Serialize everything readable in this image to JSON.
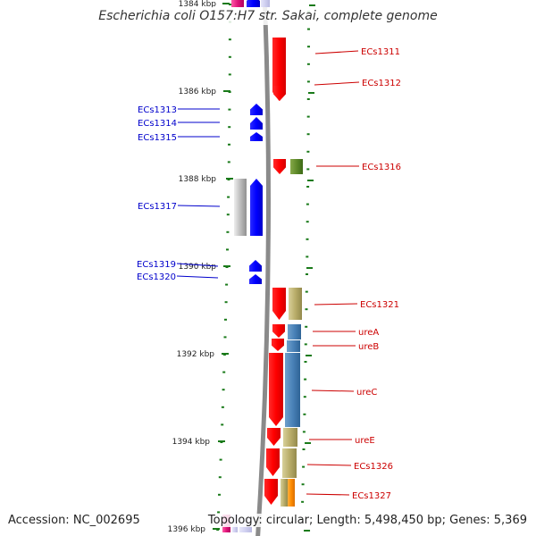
{
  "title": "Escherichia coli O157:H7 str. Sakai, complete genome",
  "footer": {
    "accession": "Accession: NC_002695",
    "topology": "Topology: circular; Length: 5,498,450 bp; Genes: 5,369"
  },
  "colors": {
    "backbone": "#8a8a8a",
    "forward_gene": "#ff0000",
    "reverse_gene": "#0000ff",
    "forward_label": "#cc0000",
    "reverse_label": "#0000cc",
    "tick": "#1a7a1a"
  },
  "scale": {
    "ticks": [
      {
        "kbp": 1384,
        "label": "1384 kbp"
      },
      {
        "kbp": 1386,
        "label": "1386 kbp"
      },
      {
        "kbp": 1388,
        "label": "1388 kbp"
      },
      {
        "kbp": 1390,
        "label": "1390 kbp"
      },
      {
        "kbp": 1392,
        "label": "1392 kbp"
      },
      {
        "kbp": 1394,
        "label": "1394 kbp"
      },
      {
        "kbp": 1396,
        "label": "1396 kbp"
      }
    ]
  },
  "genes": [
    {
      "label": "ECs1311",
      "strand": "forward"
    },
    {
      "label": "ECs1312",
      "strand": "forward"
    },
    {
      "label": "ECs1313",
      "strand": "reverse"
    },
    {
      "label": "ECs1314",
      "strand": "reverse"
    },
    {
      "label": "ECs1315",
      "strand": "reverse"
    },
    {
      "label": "ECs1316",
      "strand": "forward"
    },
    {
      "label": "ECs1317",
      "strand": "reverse"
    },
    {
      "label": "ECs1319",
      "strand": "reverse"
    },
    {
      "label": "ECs1320",
      "strand": "reverse"
    },
    {
      "label": "ECs1321",
      "strand": "forward"
    },
    {
      "label": "ureA",
      "strand": "forward"
    },
    {
      "label": "ureB",
      "strand": "forward"
    },
    {
      "label": "ureC",
      "strand": "forward"
    },
    {
      "label": "ureE",
      "strand": "forward"
    },
    {
      "label": "ECs1326",
      "strand": "forward"
    },
    {
      "label": "ECs1327",
      "strand": "forward"
    }
  ]
}
